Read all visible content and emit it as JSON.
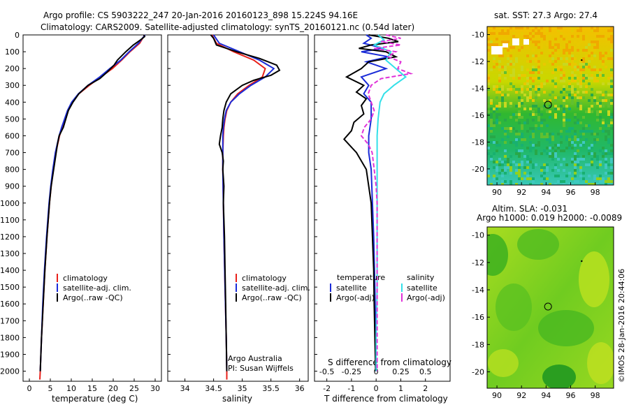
{
  "header": {
    "line1": "Argo profile: CS 5903222_247 20-Jan-2016 20160123_898 15.224S 94.16E",
    "line2": "Climatology: CARS2009. Satellite-adjusted climatology: synTS_20160121.nc (0.54d later)"
  },
  "depth_ticks": [
    "0",
    "100",
    "200",
    "300",
    "400",
    "500",
    "600",
    "700",
    "800",
    "900",
    "1000",
    "1100",
    "1200",
    "1300",
    "1400",
    "1500",
    "1600",
    "1700",
    "1800",
    "1900",
    "2000"
  ],
  "colors": {
    "clim": "#e8201a",
    "sat": "#1a2bd8",
    "argo": "#000000",
    "sat_s": "#33e0e8",
    "argo_s": "#e033d8"
  },
  "chart_data": [
    {
      "type": "line",
      "name": "temperature-profile",
      "xlabel": "temperature (deg C)",
      "ylabel": "depth",
      "xlim": [
        -1.5,
        31.5
      ],
      "ylim": [
        2060,
        0
      ],
      "xticks": [
        "0",
        "5",
        "10",
        "15",
        "20",
        "25",
        "30"
      ],
      "legend": [
        "climatology",
        "satellite-adj. clim.",
        "Argo(..raw -QC)"
      ],
      "series": [
        {
          "name": "climatology",
          "depth": [
            0,
            50,
            100,
            150,
            200,
            250,
            300,
            350,
            400,
            450,
            500,
            550,
            600,
            700,
            800,
            900,
            1000,
            1200,
            1400,
            1600,
            1800,
            2000,
            2050
          ],
          "values": [
            27.5,
            26.3,
            24.0,
            22.0,
            19.8,
            17.0,
            14.3,
            11.8,
            10.2,
            9.2,
            8.5,
            7.8,
            7.2,
            6.3,
            5.7,
            5.2,
            4.8,
            4.2,
            3.7,
            3.3,
            2.9,
            2.6,
            2.5
          ]
        },
        {
          "name": "satellite-adj. clim.",
          "depth": [
            0,
            50,
            100,
            150,
            200,
            250,
            300,
            350,
            400,
            450,
            500,
            550,
            600,
            700,
            800,
            900,
            1000,
            1200,
            1400,
            1600,
            1800,
            2000
          ],
          "values": [
            27.6,
            26.0,
            23.8,
            21.8,
            19.2,
            16.8,
            14.0,
            11.7,
            10.1,
            9.1,
            8.4,
            7.7,
            7.1,
            6.2,
            5.6,
            5.1,
            4.7,
            4.1,
            3.6,
            3.2,
            2.9,
            2.6
          ]
        },
        {
          "name": "Argo(..raw -QC)",
          "depth": [
            0,
            10,
            30,
            60,
            80,
            100,
            150,
            180,
            220,
            260,
            300,
            350,
            400,
            450,
            500,
            550,
            600,
            650,
            700,
            800,
            900,
            1000,
            1200,
            1400,
            1600,
            1800,
            2000
          ],
          "values": [
            27.3,
            27.5,
            26.5,
            24.8,
            23.9,
            23.0,
            21.0,
            20.2,
            18.6,
            16.8,
            14.0,
            11.8,
            10.4,
            9.3,
            8.7,
            8.1,
            7.1,
            6.7,
            6.4,
            5.8,
            5.2,
            4.8,
            4.2,
            3.7,
            3.3,
            2.9,
            2.6
          ]
        }
      ]
    },
    {
      "type": "line",
      "name": "salinity-profile",
      "xlabel": "salinity",
      "xlim": [
        33.7,
        36.15
      ],
      "ylim": [
        2060,
        0
      ],
      "xticks": [
        "34",
        "34.5",
        "35",
        "35.5",
        "36"
      ],
      "legend": [
        "climatology",
        "satellite-adj. clim.",
        "Argo(..raw -QC)"
      ],
      "annotation": [
        "Argo Australia",
        "PI: Susan Wijffels"
      ],
      "series": [
        {
          "name": "climatology",
          "depth": [
            0,
            50,
            100,
            150,
            200,
            250,
            300,
            350,
            400,
            450,
            500,
            550,
            600,
            700,
            800,
            1000,
            1200,
            1500,
            1800,
            2000,
            2050
          ],
          "values": [
            34.47,
            34.55,
            34.85,
            35.2,
            35.4,
            35.35,
            35.12,
            34.92,
            34.8,
            34.73,
            34.7,
            34.68,
            34.67,
            34.66,
            34.66,
            34.67,
            34.68,
            34.7,
            34.72,
            34.73,
            34.73
          ]
        },
        {
          "name": "satellite-adj. clim.",
          "depth": [
            0,
            50,
            100,
            150,
            200,
            250,
            300,
            350,
            400,
            450,
            500,
            550,
            600,
            700,
            800,
            1000,
            1200,
            1500,
            1800,
            2000
          ],
          "values": [
            34.5,
            34.6,
            34.95,
            35.3,
            35.55,
            35.4,
            35.15,
            34.95,
            34.8,
            34.72,
            34.69,
            34.67,
            34.66,
            34.66,
            34.66,
            34.67,
            34.68,
            34.7,
            34.72,
            34.73
          ]
        },
        {
          "name": "Argo(..raw -QC)",
          "depth": [
            0,
            20,
            60,
            100,
            140,
            180,
            210,
            240,
            270,
            300,
            350,
            400,
            450,
            500,
            550,
            600,
            650,
            700,
            750,
            800,
            900,
            1000,
            1200,
            1400,
            1600,
            1800,
            2000
          ],
          "values": [
            34.45,
            34.5,
            34.55,
            34.9,
            35.3,
            35.6,
            35.65,
            35.5,
            35.2,
            35.0,
            34.8,
            34.72,
            34.68,
            34.66,
            34.65,
            34.62,
            34.6,
            34.65,
            34.67,
            34.66,
            34.68,
            34.67,
            34.69,
            34.7,
            34.71,
            34.72,
            34.73
          ]
        }
      ]
    },
    {
      "type": "line",
      "name": "difference-profile",
      "xlabel": "T difference from climatology",
      "top_axis_label": "S difference from climatology",
      "xlim": [
        -2.5,
        3.0
      ],
      "ylim": [
        2060,
        0
      ],
      "xticks": [
        "-2",
        "-1",
        "0",
        "1",
        "2"
      ],
      "top_xticks": [
        "-0.5",
        "-0.25",
        "0",
        "0.25",
        "0.5"
      ],
      "legend": {
        "temperature": [
          "satellite",
          "Argo(-adj)"
        ],
        "salinity": [
          "satellite",
          "Argo(-adj)"
        ],
        "titles": [
          "temperature",
          "salinity"
        ]
      },
      "series": [
        {
          "name": "temperature satellite",
          "depth": [
            0,
            20,
            50,
            80,
            100,
            130,
            160,
            200,
            250,
            300,
            350,
            400,
            500,
            600,
            700,
            800,
            1000,
            1200,
            1500,
            1800,
            2000
          ],
          "values": [
            -0.4,
            -0.2,
            -0.5,
            0.3,
            -0.6,
            0.5,
            -0.4,
            0.4,
            -0.6,
            -0.3,
            -0.5,
            -0.2,
            -0.2,
            -0.3,
            -0.3,
            -0.2,
            -0.15,
            -0.1,
            -0.05,
            -0.02,
            0.0
          ]
        },
        {
          "name": "temperature Argo(-adj)",
          "depth": [
            0,
            20,
            40,
            60,
            80,
            100,
            130,
            160,
            200,
            250,
            300,
            340,
            380,
            420,
            470,
            520,
            570,
            620,
            700,
            800,
            900,
            1000,
            1200,
            1400,
            1600,
            1800,
            2000
          ],
          "values": [
            -0.3,
            0.5,
            0.9,
            -0.2,
            -0.7,
            0.4,
            0.8,
            -0.3,
            -0.6,
            -1.2,
            -0.5,
            -0.8,
            -0.4,
            -0.6,
            -0.5,
            -0.9,
            -1.0,
            -1.3,
            -0.8,
            -0.4,
            -0.3,
            -0.2,
            -0.15,
            -0.1,
            -0.08,
            -0.05,
            -0.02
          ]
        },
        {
          "name": "salinity satellite",
          "depth": [
            0,
            30,
            60,
            100,
            150,
            200,
            250,
            300,
            350,
            400,
            500,
            600,
            700,
            800,
            1000,
            1200,
            1500,
            1800,
            2000
          ],
          "values": [
            0.02,
            0.08,
            -0.02,
            0.15,
            0.1,
            0.2,
            0.3,
            0.18,
            0.08,
            0.04,
            0.02,
            0.01,
            0.01,
            0.01,
            0.01,
            0.01,
            0.01,
            0.0,
            0.0
          ]
        },
        {
          "name": "salinity Argo(-adj)",
          "depth": [
            0,
            20,
            40,
            60,
            80,
            100,
            130,
            160,
            200,
            230,
            260,
            300,
            350,
            400,
            450,
            500,
            550,
            600,
            650,
            700,
            800,
            900,
            1000,
            1200,
            1500,
            1800,
            2000
          ],
          "values": [
            0.1,
            0.25,
            0.05,
            0.25,
            -0.02,
            0.2,
            0.12,
            0.25,
            0.22,
            0.35,
            0.05,
            -0.05,
            -0.08,
            -0.05,
            -0.02,
            -0.05,
            -0.12,
            -0.15,
            -0.08,
            -0.04,
            -0.02,
            0.0,
            0.01,
            0.01,
            0.01,
            0.01,
            0.01
          ]
        }
      ]
    },
    {
      "type": "heatmap",
      "name": "sst-map",
      "title": "sat. SST: 27.3 Argo: 27.4",
      "xlim": [
        89.2,
        99.5
      ],
      "ylim": [
        -21.2,
        -9.4
      ],
      "xticks": [
        "90",
        "92",
        "94",
        "96",
        "98"
      ],
      "yticks": [
        "-10",
        "-12",
        "-14",
        "-16",
        "-18",
        "-20"
      ],
      "float_position": [
        94.16,
        -15.224
      ]
    },
    {
      "type": "heatmap",
      "name": "sla-map",
      "title": [
        "Altim. SLA: -0.031",
        "Argo h1000: 0.019 h2000: -0.0089"
      ],
      "xlim": [
        89.2,
        99.5
      ],
      "ylim": [
        -21.2,
        -9.4
      ],
      "xticks": [
        "90",
        "92",
        "94",
        "96",
        "98"
      ],
      "yticks": [
        "-10",
        "-12",
        "-14",
        "-16",
        "-18",
        "-20"
      ],
      "float_position": [
        94.16,
        -15.224
      ]
    }
  ],
  "credit": "©IMOS 28-Jan-2016 20:44:06"
}
